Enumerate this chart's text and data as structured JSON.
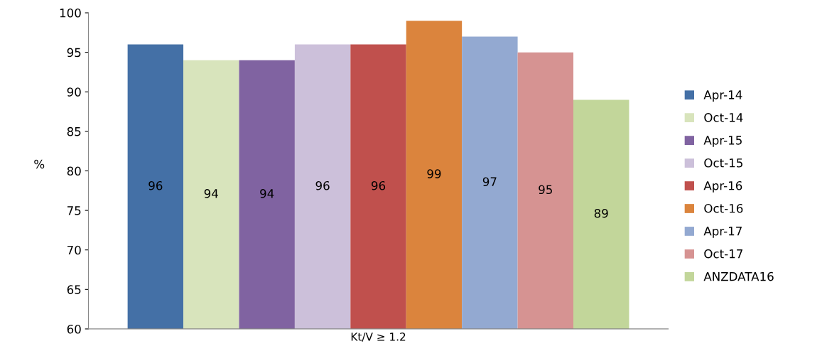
{
  "chart_data": {
    "type": "bar",
    "categories": [
      "Kt/V ≥ 1.2"
    ],
    "ylabel": "%",
    "ylim": [
      60,
      100
    ],
    "yticks": [
      60,
      65,
      70,
      75,
      80,
      85,
      90,
      95,
      100
    ],
    "grid": false,
    "legend": "right",
    "data_labels": true,
    "series": [
      {
        "name": "Apr-14",
        "color": "#4470a6",
        "values": [
          96
        ]
      },
      {
        "name": "Oct-14",
        "color": "#d8e4bc",
        "values": [
          94
        ]
      },
      {
        "name": "Apr-15",
        "color": "#8063a1",
        "values": [
          94
        ]
      },
      {
        "name": "Oct-15",
        "color": "#ccc0da",
        "values": [
          96
        ]
      },
      {
        "name": "Apr-16",
        "color": "#c0504d",
        "values": [
          96
        ]
      },
      {
        "name": "Oct-16",
        "color": "#db843d",
        "values": [
          99
        ]
      },
      {
        "name": "Apr-17",
        "color": "#93a9d1",
        "values": [
          97
        ]
      },
      {
        "name": "Oct-17",
        "color": "#d69392",
        "values": [
          95
        ]
      },
      {
        "name": "ANZDATA16",
        "color": "#c2d69a",
        "values": [
          89
        ]
      }
    ]
  }
}
